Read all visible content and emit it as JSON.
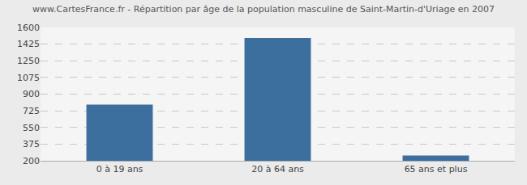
{
  "chart_data": {
    "type": "bar",
    "title": "www.CartesFrance.fr - Répartition par âge de la population masculine de Saint-Martin-d'Uriage en 2007",
    "categories": [
      "0 à 19 ans",
      "20 à 64 ans",
      "65 ans et plus"
    ],
    "values": [
      790,
      1490,
      255
    ],
    "color": "#3d6f9e",
    "ylim": [
      200,
      1600
    ],
    "yticks": [
      200,
      375,
      550,
      725,
      900,
      1075,
      1250,
      1425,
      1600
    ],
    "grid": true
  }
}
